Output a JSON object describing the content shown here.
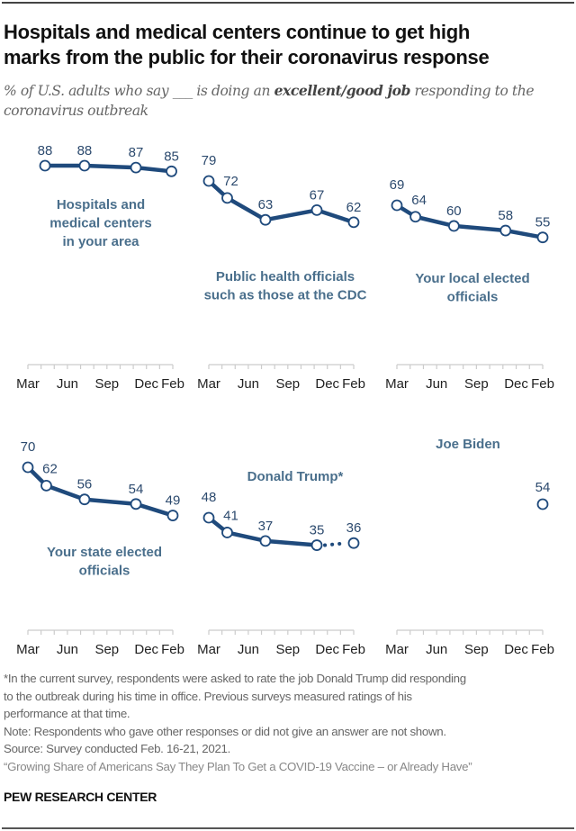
{
  "header": {
    "title_line1": "Hospitals and medical centers continue to get high",
    "title_line2": "marks from the public for their coronavirus response",
    "subtitle_pre": "% of U.S. adults who say ___ is doing an ",
    "subtitle_bold": "excellent/good job",
    "subtitle_post": " responding to the coronavirus outbreak"
  },
  "colors": {
    "line": "#1f4a7c",
    "label": "#4a6f8c",
    "value_text": "#2c4a6e",
    "axis": "#cccccc",
    "tick_text": "#222222"
  },
  "chart_data": [
    {
      "type": "line",
      "title": "Hospitals and medical centers in your area",
      "title_lines": [
        "Hospitals and",
        "medical centers",
        "in your area"
      ],
      "x_months_since_march": [
        1.3,
        4.3,
        8.2,
        10.9
      ],
      "values": [
        88,
        88,
        87,
        85
      ],
      "xticks": [
        "Mar",
        "Jun",
        "Sep",
        "Dec",
        "Feb"
      ],
      "ylim": [
        0,
        100
      ]
    },
    {
      "type": "line",
      "title": "Public health officials such as those at the CDC",
      "title_lines": [
        "Public health officials",
        "such as those at the CDC"
      ],
      "x_months_since_march": [
        0,
        1.4,
        4.3,
        8.2,
        11
      ],
      "values": [
        79,
        72,
        63,
        67,
        62
      ],
      "xticks": [
        "Mar",
        "Jun",
        "Sep",
        "Dec",
        "Feb"
      ],
      "ylim": [
        0,
        100
      ]
    },
    {
      "type": "line",
      "title": "Your local elected officials",
      "title_lines": [
        "Your local elected",
        "officials"
      ],
      "x_months_since_march": [
        0,
        1.4,
        4.3,
        8.2,
        11
      ],
      "values": [
        69,
        64,
        60,
        58,
        55
      ],
      "xticks": [
        "Mar",
        "Jun",
        "Sep",
        "Dec",
        "Feb"
      ],
      "ylim": [
        0,
        100
      ]
    },
    {
      "type": "line",
      "title": "Your state elected officials",
      "title_lines": [
        "Your state elected",
        "officials"
      ],
      "x_months_since_march": [
        0,
        1.4,
        4.3,
        8.2,
        11
      ],
      "values": [
        70,
        62,
        56,
        54,
        49
      ],
      "xticks": [
        "Mar",
        "Jun",
        "Sep",
        "Dec",
        "Feb"
      ],
      "ylim": [
        0,
        100
      ]
    },
    {
      "type": "line",
      "title": "Donald Trump*",
      "title_lines": [
        "Donald Trump*"
      ],
      "x_months_since_march": [
        0,
        1.4,
        4.3,
        8.2,
        11
      ],
      "values": [
        48,
        41,
        37,
        35,
        36
      ],
      "dotted_last_segment": true,
      "xticks": [
        "Mar",
        "Jun",
        "Sep",
        "Dec",
        "Feb"
      ],
      "ylim": [
        0,
        100
      ]
    },
    {
      "type": "line",
      "title": "Joe Biden",
      "title_lines": [
        "Joe Biden"
      ],
      "x_months_since_march": [
        11
      ],
      "values": [
        54
      ],
      "xticks": [
        "Mar",
        "Jun",
        "Sep",
        "Dec",
        "Feb"
      ],
      "ylim": [
        0,
        100
      ]
    }
  ],
  "notes": {
    "footnote_line1": "*In the current survey, respondents were asked to rate the job Donald Trump did responding",
    "footnote_line2": "to the outbreak during his time in office. Previous surveys measured ratings of his",
    "footnote_line3": "performance at that time.",
    "note": "Note: Respondents who gave other responses or did not give an answer are not shown.",
    "source": "Source: Survey conducted Feb. 16-21, 2021.",
    "report_title": "“Growing Share of Americans Say They Plan To Get a COVID-19 Vaccine – or Already Have”"
  },
  "brand": "PEW RESEARCH CENTER"
}
